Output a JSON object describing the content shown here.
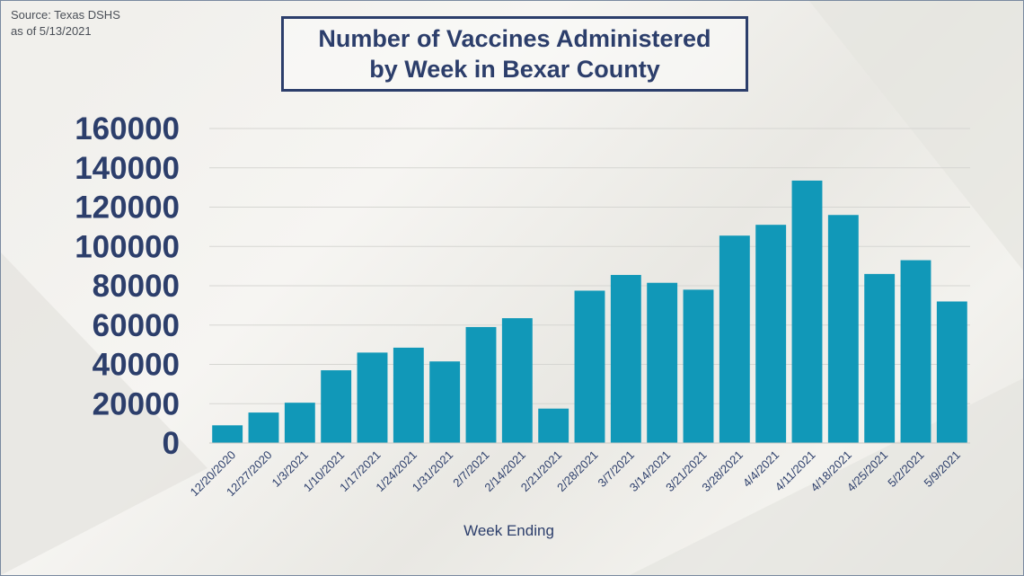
{
  "source": {
    "line1": "Source: Texas DSHS",
    "line2": "as of 5/13/2021"
  },
  "colors": {
    "bar": "#1198b8",
    "title": "#2c3e6b",
    "grid": "#d6d6d2"
  },
  "chart_data": {
    "type": "bar",
    "title_line1": "Number of Vaccines Administered",
    "title_line2": "by Week in Bexar County",
    "xlabel": "Week Ending",
    "ylabel": "",
    "ylim": [
      0,
      160000
    ],
    "yticks": [
      0,
      20000,
      40000,
      60000,
      80000,
      100000,
      120000,
      140000,
      160000
    ],
    "grid": true,
    "categories": [
      "12/20/2020",
      "12/27/2020",
      "1/3/2021",
      "1/10/2021",
      "1/17/2021",
      "1/24/2021",
      "1/31/2021",
      "2/7/2021",
      "2/14/2021",
      "2/21/2021",
      "2/28/2021",
      "3/7/2021",
      "3/14/2021",
      "3/21/2021",
      "3/28/2021",
      "4/4/2021",
      "4/11/2021",
      "4/18/2021",
      "4/25/2021",
      "5/2/2021",
      "5/9/2021"
    ],
    "values": [
      9000,
      15500,
      20500,
      37000,
      46000,
      48500,
      41500,
      59000,
      63500,
      17500,
      77500,
      85500,
      81500,
      78000,
      105500,
      111000,
      133500,
      116000,
      86000,
      93000,
      72000
    ]
  }
}
